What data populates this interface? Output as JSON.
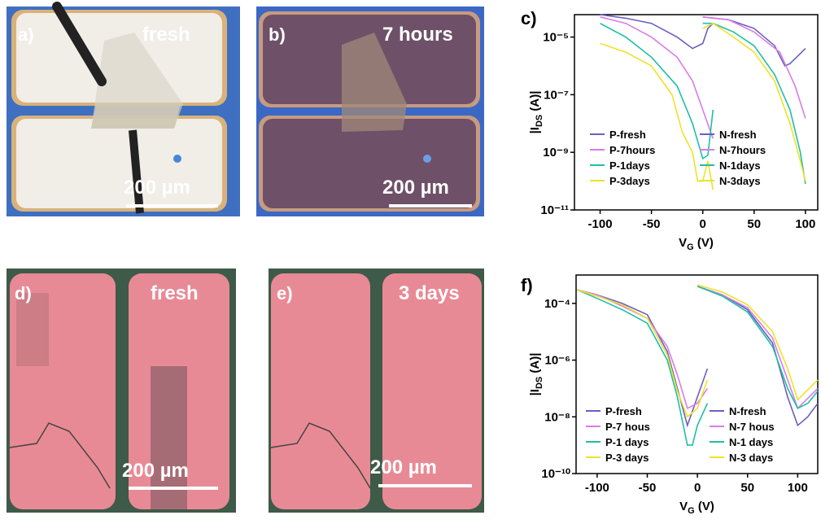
{
  "images": [
    {
      "label": "a)",
      "caption": "fresh",
      "scale": "200 µm"
    },
    {
      "label": "b)",
      "caption": "7 hours",
      "scale": "200 µm"
    },
    {
      "label": "d)",
      "caption": "fresh",
      "scale": "200 µm"
    },
    {
      "label": "e)",
      "caption": "3 days",
      "scale": "200 µm"
    }
  ],
  "chart_data": [
    {
      "type": "line",
      "title": "c)",
      "log_y": true,
      "ylabel": {
        "main": "|I",
        "sub": "DS",
        "rest": " (A)|"
      },
      "xlabel": {
        "main": "V",
        "sub": "G",
        "rest": " (V)"
      },
      "xlim": [
        -125,
        112
      ],
      "xticks": [
        -100,
        -50,
        0,
        50,
        100
      ],
      "ylim": [
        1e-11,
        6e-05
      ],
      "yticks": [
        {
          "value": 1e-11,
          "label": "10⁻¹¹"
        },
        {
          "value": 1e-09,
          "label": "10⁻⁹"
        },
        {
          "value": 1e-07,
          "label": "10⁻⁷"
        },
        {
          "value": 1e-05,
          "label": "10⁻⁵"
        }
      ],
      "series": [
        {
          "name": "P-fresh",
          "color": "#6a5fc0",
          "x": [
            -100,
            -75,
            -50,
            -25,
            -10,
            0,
            5,
            10
          ],
          "values": [
            6e-05,
            4.5e-05,
            3e-05,
            1e-05,
            4e-06,
            6e-06,
            2e-05,
            3e-05
          ]
        },
        {
          "name": "P-7hours",
          "color": "#d87ce8",
          "x": [
            -100,
            -75,
            -50,
            -25,
            -10,
            0,
            10
          ],
          "values": [
            5e-05,
            3e-05,
            1e-05,
            2e-06,
            3e-07,
            3e-08,
            3e-09
          ]
        },
        {
          "name": "P-1days",
          "color": "#1fbfa5",
          "x": [
            -100,
            -75,
            -50,
            -25,
            -10,
            0,
            5,
            10
          ],
          "values": [
            3e-05,
            1e-05,
            2e-06,
            2e-07,
            1e-08,
            6e-10,
            8e-10,
            3e-08
          ]
        },
        {
          "name": "P-3days",
          "color": "#eee22a",
          "x": [
            -100,
            -75,
            -50,
            -30,
            -20,
            -10,
            -5,
            0,
            5,
            10
          ],
          "values": [
            6e-06,
            3e-06,
            1e-06,
            1e-07,
            5e-09,
            1e-09,
            1e-10,
            1e-10,
            5e-10,
            5e-11
          ]
        },
        {
          "name": "N-fresh",
          "color": "#6a5fc0",
          "x": [
            0,
            25,
            50,
            70,
            80,
            85,
            100
          ],
          "values": [
            5e-05,
            4e-05,
            2e-05,
            5e-06,
            1e-06,
            1.2e-06,
            4e-06
          ]
        },
        {
          "name": "N-7hours",
          "color": "#d87ce8",
          "x": [
            0,
            25,
            50,
            75,
            90,
            100
          ],
          "values": [
            5e-05,
            4e-05,
            1.5e-05,
            3e-06,
            2e-07,
            1.5e-08
          ]
        },
        {
          "name": "N-1days",
          "color": "#1fbfa5",
          "x": [
            0,
            10,
            30,
            50,
            70,
            85,
            95,
            100
          ],
          "values": [
            3e-05,
            3e-05,
            1.5e-05,
            5e-06,
            5e-07,
            3e-08,
            1e-09,
            8e-11
          ]
        },
        {
          "name": "N-3days",
          "color": "#eee22a",
          "x": [
            0,
            10,
            30,
            50,
            70,
            85,
            95,
            100
          ],
          "values": [
            2e-05,
            3e-05,
            1e-05,
            3e-06,
            3e-07,
            1e-08,
            5e-10,
            1e-10
          ]
        }
      ]
    },
    {
      "type": "line",
      "title": "f)",
      "log_y": true,
      "ylabel": {
        "main": "|I",
        "sub": "DS",
        "rest": " (A)|"
      },
      "xlabel": {
        "main": "V",
        "sub": "G",
        "rest": " (V)"
      },
      "xlim": [
        -121,
        120
      ],
      "xticks": [
        -100,
        -50,
        0,
        50,
        100
      ],
      "ylim": [
        1e-10,
        0.001
      ],
      "yticks": [
        {
          "value": 1e-10,
          "label": "10⁻¹⁰"
        },
        {
          "value": 1e-08,
          "label": "10⁻⁸"
        },
        {
          "value": 1e-06,
          "label": "10⁻⁶"
        },
        {
          "value": 0.0001,
          "label": "10⁻⁴"
        }
      ],
      "series": [
        {
          "name": "P-fresh",
          "color": "#6a5fc0",
          "x": [
            -120,
            -100,
            -75,
            -50,
            -30,
            -20,
            -10,
            0,
            10
          ],
          "values": [
            0.0003,
            0.0002,
            0.0001,
            4e-05,
            2e-06,
            1e-07,
            5e-09,
            5e-08,
            5e-07
          ]
        },
        {
          "name": "P-7 hous",
          "color": "#d87ce8",
          "x": [
            -120,
            -100,
            -75,
            -50,
            -30,
            -20,
            -10,
            0,
            10
          ],
          "values": [
            0.0003,
            0.0002,
            8e-05,
            3e-05,
            3e-06,
            3e-07,
            2e-08,
            3e-08,
            1e-07
          ]
        },
        {
          "name": "P-1 days",
          "color": "#1fbfa5",
          "x": [
            -120,
            -100,
            -75,
            -50,
            -30,
            -20,
            -10,
            -5,
            0,
            10
          ],
          "values": [
            0.0003,
            0.00015,
            6e-05,
            2e-05,
            1e-06,
            5e-08,
            1e-09,
            1e-09,
            5e-09,
            3e-08
          ]
        },
        {
          "name": "P-3 days",
          "color": "#eee22a",
          "x": [
            -120,
            -100,
            -75,
            -50,
            -30,
            -20,
            -10,
            0,
            10
          ],
          "values": [
            0.0003,
            0.00018,
            9e-05,
            3e-05,
            1.5e-06,
            8e-08,
            1e-08,
            2e-08,
            2e-07
          ]
        },
        {
          "name": "N-fresh",
          "color": "#6a5fc0",
          "x": [
            0,
            25,
            50,
            75,
            90,
            100,
            110,
            120
          ],
          "values": [
            0.0004,
            0.0002,
            6e-05,
            4e-06,
            5e-08,
            5e-09,
            1e-08,
            3e-08
          ]
        },
        {
          "name": "N-7 hous",
          "color": "#d87ce8",
          "x": [
            0,
            25,
            50,
            75,
            90,
            100,
            120
          ],
          "values": [
            0.0004,
            0.0002,
            7e-05,
            6e-06,
            2e-07,
            2e-08,
            1e-07
          ]
        },
        {
          "name": "N-1 days",
          "color": "#1fbfa5",
          "x": [
            0,
            25,
            50,
            75,
            90,
            100,
            110,
            120
          ],
          "values": [
            0.0004,
            0.00018,
            5e-05,
            3e-06,
            1e-07,
            2e-08,
            3e-08,
            8e-08
          ]
        },
        {
          "name": "N-3 days",
          "color": "#eee22a",
          "x": [
            0,
            25,
            50,
            75,
            90,
            100,
            120
          ],
          "values": [
            0.00045,
            0.00025,
            9e-05,
            1e-05,
            5e-07,
            4e-08,
            2e-07
          ]
        }
      ]
    }
  ]
}
